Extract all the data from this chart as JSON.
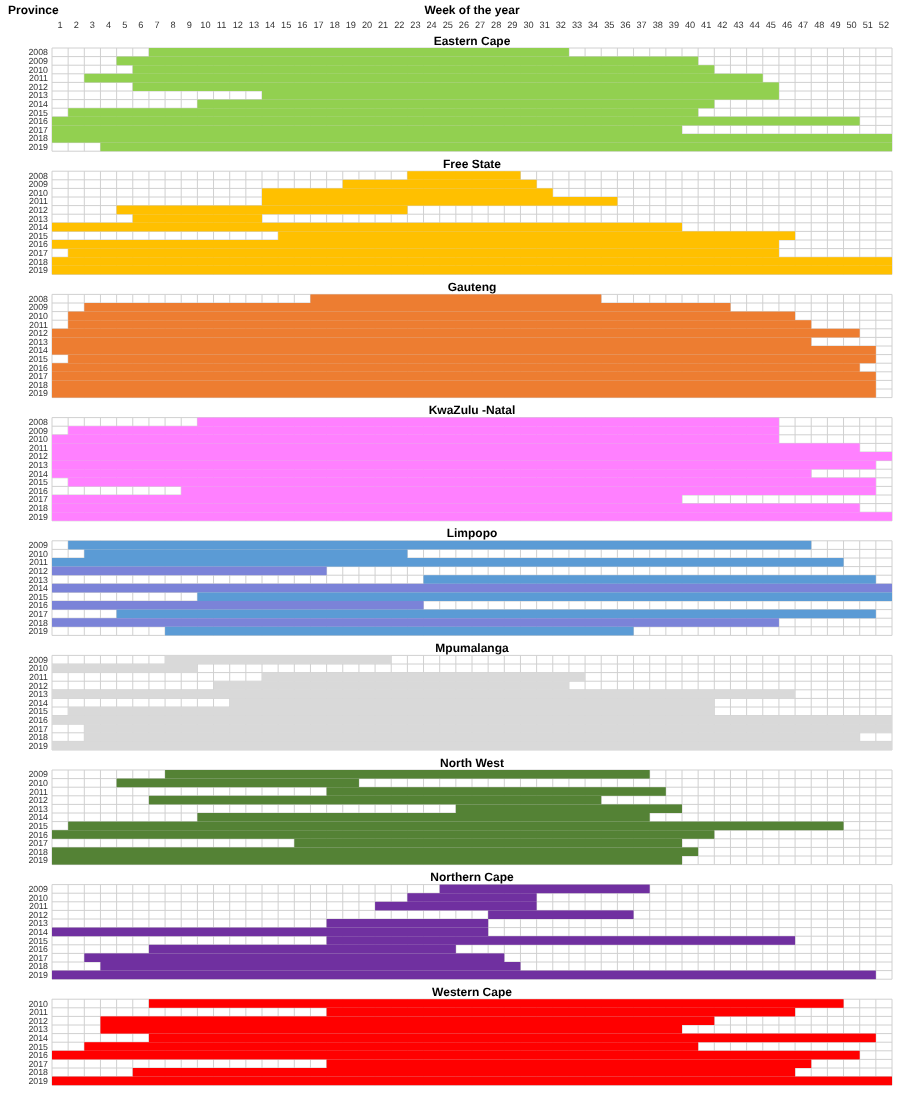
{
  "chart_data": [
    {
      "type": "bar",
      "orientation": "horizontal",
      "title": "Eastern Cape",
      "xlabel": "Week of the year",
      "ylabel": "Province",
      "categories": [
        "2008",
        "2009",
        "2010",
        "2011",
        "2012",
        "2013",
        "2014",
        "2015",
        "2016",
        "2017",
        "2018",
        "2019"
      ],
      "base": [
        6,
        4,
        5,
        2,
        5,
        13,
        9,
        1,
        0,
        0,
        0,
        3
      ],
      "values": [
        26,
        36,
        36,
        42,
        40,
        32,
        32,
        39,
        50,
        39,
        52,
        49
      ],
      "color": "#92d050",
      "xlim": [
        0,
        52
      ],
      "xticks": [
        {
          "value": 0.5,
          "label": "1"
        },
        {
          "value": 1.5,
          "label": "2"
        },
        {
          "value": 2.5,
          "label": "3"
        },
        {
          "value": 3.5,
          "label": "4"
        },
        {
          "value": 4.5,
          "label": "5"
        },
        {
          "value": 5.5,
          "label": "6"
        },
        {
          "value": 6.5,
          "label": "7"
        },
        {
          "value": 7.5,
          "label": "8"
        },
        {
          "value": 8.5,
          "label": "9"
        },
        {
          "value": 9.5,
          "label": "10"
        },
        {
          "value": 10.5,
          "label": "11"
        },
        {
          "value": 11.5,
          "label": "12"
        },
        {
          "value": 12.5,
          "label": "13"
        },
        {
          "value": 13.5,
          "label": "14"
        },
        {
          "value": 14.5,
          "label": "15"
        },
        {
          "value": 15.5,
          "label": "16"
        },
        {
          "value": 16.5,
          "label": "17"
        },
        {
          "value": 17.5,
          "label": "18"
        },
        {
          "value": 18.5,
          "label": "19"
        },
        {
          "value": 19.5,
          "label": "20"
        },
        {
          "value": 20.5,
          "label": "21"
        },
        {
          "value": 21.5,
          "label": "22"
        },
        {
          "value": 22.5,
          "label": "23"
        },
        {
          "value": 23.5,
          "label": "24"
        },
        {
          "value": 24.5,
          "label": "25"
        },
        {
          "value": 25.5,
          "label": "26"
        },
        {
          "value": 26.5,
          "label": "27"
        },
        {
          "value": 27.5,
          "label": "28"
        },
        {
          "value": 28.5,
          "label": "29"
        },
        {
          "value": 29.5,
          "label": "30"
        },
        {
          "value": 30.5,
          "label": "31"
        },
        {
          "value": 31.5,
          "label": "32"
        },
        {
          "value": 32.5,
          "label": "33"
        },
        {
          "value": 33.5,
          "label": "34"
        },
        {
          "value": 34.5,
          "label": "35"
        },
        {
          "value": 35.5,
          "label": "36"
        },
        {
          "value": 36.5,
          "label": "37"
        },
        {
          "value": 37.5,
          "label": "38"
        },
        {
          "value": 38.5,
          "label": "39"
        },
        {
          "value": 39.5,
          "label": "40"
        },
        {
          "value": 40.5,
          "label": "41"
        },
        {
          "value": 41.5,
          "label": "42"
        },
        {
          "value": 42.5,
          "label": "43"
        },
        {
          "value": 43.5,
          "label": "44"
        },
        {
          "value": 44.5,
          "label": "45"
        },
        {
          "value": 45.5,
          "label": "46"
        },
        {
          "value": 46.5,
          "label": "47"
        },
        {
          "value": 47.5,
          "label": "48"
        },
        {
          "value": 48.5,
          "label": "49"
        },
        {
          "value": 49.5,
          "label": "50"
        },
        {
          "value": 50.5,
          "label": "51"
        },
        {
          "value": 51.5,
          "label": "52"
        }
      ],
      "grid": true
    },
    {
      "type": "bar",
      "orientation": "horizontal",
      "title": "Free State",
      "categories": [
        "2008",
        "2009",
        "2010",
        "2011",
        "2012",
        "2013",
        "2014",
        "2015",
        "2016",
        "2017",
        "2018",
        "2019"
      ],
      "base": [
        22,
        18,
        13,
        13,
        4,
        5,
        0,
        14,
        0,
        1,
        0,
        0
      ],
      "values": [
        7,
        12,
        18,
        22,
        18,
        8,
        39,
        32,
        45,
        44,
        52,
        52
      ],
      "color": "#ffc000",
      "xlim": [
        0,
        52
      ],
      "grid": true,
      "tick_labels": "y"
    },
    {
      "type": "bar",
      "orientation": "horizontal",
      "title": "Gauteng",
      "categories": [
        "2008",
        "2009",
        "2010",
        "2011",
        "2012",
        "2013",
        "2014",
        "2015",
        "2016",
        "2017",
        "2018",
        "2019"
      ],
      "base": [
        16,
        2,
        1,
        1,
        0,
        0,
        0,
        1,
        0,
        0,
        0,
        0
      ],
      "values": [
        18,
        40,
        45,
        46,
        50,
        47,
        51,
        50,
        50,
        51,
        51,
        51
      ],
      "color": "#ed7d31",
      "xlim": [
        0,
        52
      ],
      "grid": true,
      "tick_labels": "y"
    },
    {
      "type": "bar",
      "orientation": "horizontal",
      "title": "KwaZulu -Natal",
      "categories": [
        "2008",
        "2009",
        "2010",
        "2011",
        "2012",
        "2013",
        "2014",
        "2015",
        "2016",
        "2017",
        "2018",
        "2019"
      ],
      "base": [
        9,
        1,
        0,
        0,
        0,
        0,
        0,
        1,
        8,
        0,
        0,
        0
      ],
      "values": [
        36,
        44,
        45,
        50,
        52,
        51,
        47,
        50,
        43,
        39,
        50,
        52
      ],
      "color": "#ff80ff",
      "xlim": [
        0,
        52
      ],
      "grid": true,
      "tick_labels": "y"
    },
    {
      "type": "bar",
      "orientation": "horizontal",
      "title": "Limpopo",
      "categories": [
        "2009",
        "2010",
        "2011",
        "2012",
        "2013",
        "2014",
        "2015",
        "2016",
        "2017",
        "2018",
        "2019"
      ],
      "base": [
        1,
        2,
        0,
        0,
        23,
        0,
        9,
        0,
        4,
        0,
        7
      ],
      "values": [
        46,
        20,
        49,
        17,
        28,
        52,
        43,
        23,
        47,
        45,
        29
      ],
      "colors": [
        "#5b9bd5",
        "#5b9bd5",
        "#5b9bd5",
        "#7b83d8",
        "#5b9bd5",
        "#7b83d8",
        "#5b9bd5",
        "#7b83d8",
        "#5b9bd5",
        "#7b83d8",
        "#5b9bd5"
      ],
      "xlim": [
        0,
        52
      ],
      "grid": true,
      "tick_labels": "y"
    },
    {
      "type": "bar",
      "orientation": "horizontal",
      "title": "Mpumalanga",
      "categories": [
        "2009",
        "2010",
        "2011",
        "2012",
        "2013",
        "2014",
        "2015",
        "2016",
        "2017",
        "2018",
        "2019"
      ],
      "base": [
        7,
        0,
        13,
        10,
        0,
        11,
        1,
        0,
        2,
        2,
        0
      ],
      "values": [
        14,
        9,
        20,
        22,
        46,
        30,
        40,
        52,
        50,
        48,
        52
      ],
      "color": "#d9d9d9",
      "xlim": [
        0,
        52
      ],
      "grid": true,
      "tick_labels": "y"
    },
    {
      "type": "bar",
      "orientation": "horizontal",
      "title": "North West",
      "categories": [
        "2009",
        "2010",
        "2011",
        "2012",
        "2013",
        "2014",
        "2015",
        "2016",
        "2017",
        "2018",
        "2019"
      ],
      "base": [
        7,
        4,
        17,
        6,
        25,
        9,
        1,
        0,
        15,
        0,
        0
      ],
      "values": [
        30,
        15,
        21,
        28,
        14,
        28,
        48,
        41,
        24,
        40,
        39
      ],
      "color": "#548235",
      "xlim": [
        0,
        52
      ],
      "grid": true,
      "tick_labels": "y"
    },
    {
      "type": "bar",
      "orientation": "horizontal",
      "title": "Northern Cape",
      "categories": [
        "2009",
        "2010",
        "2011",
        "2012",
        "2013",
        "2014",
        "2015",
        "2016",
        "2017",
        "2018",
        "2019"
      ],
      "base": [
        24,
        22,
        20,
        27,
        17,
        0,
        17,
        6,
        2,
        3,
        0
      ],
      "values": [
        13,
        8,
        10,
        9,
        10,
        27,
        29,
        19,
        26,
        26,
        51
      ],
      "color": "#7030a0",
      "xlim": [
        0,
        52
      ],
      "grid": true,
      "tick_labels": "y"
    },
    {
      "type": "bar",
      "orientation": "horizontal",
      "title": "Western Cape",
      "categories": [
        "2010",
        "2011",
        "2012",
        "2013",
        "2014",
        "2015",
        "2016",
        "2017",
        "2018",
        "2019"
      ],
      "base": [
        6,
        17,
        3,
        3,
        6,
        2,
        0,
        17,
        5,
        0
      ],
      "values": [
        43,
        29,
        38,
        36,
        45,
        38,
        50,
        30,
        41,
        52
      ],
      "color": "#ff0000",
      "xlim": [
        0,
        52
      ],
      "grid": true,
      "tick_labels": "y"
    }
  ]
}
